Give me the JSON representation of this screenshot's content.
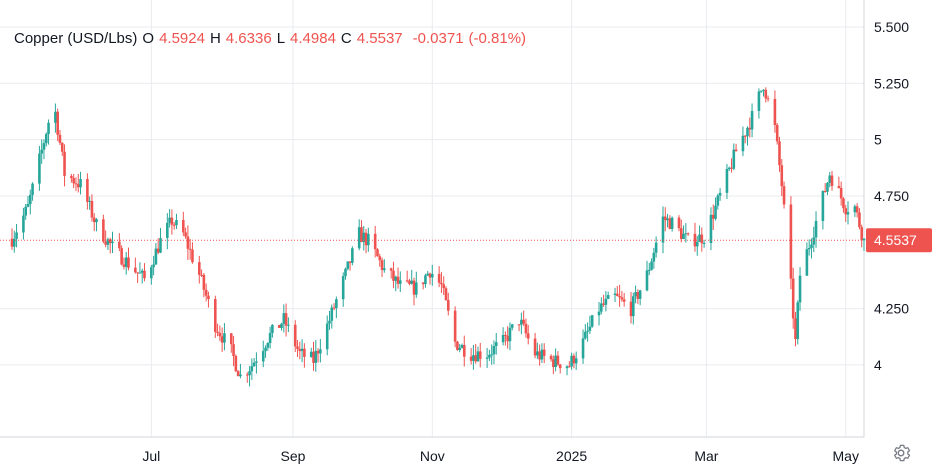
{
  "legend": {
    "symbol": "Copper (USD/Lbs)",
    "o_label": "O",
    "open": "4.5924",
    "h_label": "H",
    "high": "4.6336",
    "l_label": "L",
    "low": "4.4984",
    "c_label": "C",
    "close": "4.5537",
    "change": "-0.0371",
    "change_pct": "(-0.81%)"
  },
  "colors": {
    "up": "#26a69a",
    "down": "#ef5350",
    "grid": "#e9ebef",
    "axis_text": "#131722",
    "price_tag": "#ef5350"
  },
  "chart_data": {
    "type": "candlestick",
    "title": "Copper (USD/Lbs)",
    "ylim": [
      3.68,
      5.62
    ],
    "y_ticks": [
      {
        "value": 5.5,
        "label": "5.500"
      },
      {
        "value": 5.25,
        "label": "5.250"
      },
      {
        "value": 5.0,
        "label": "5"
      },
      {
        "value": 4.75,
        "label": "4.750"
      },
      {
        "value": 4.25,
        "label": "4.250"
      },
      {
        "value": 4.0,
        "label": "4"
      }
    ],
    "x_range": [
      "2024-05-01",
      "2025-05-09"
    ],
    "x_ticks": [
      {
        "date": "2024-07-01",
        "label": "Jul"
      },
      {
        "date": "2024-09-01",
        "label": "Sep"
      },
      {
        "date": "2024-11-01",
        "label": "Nov"
      },
      {
        "date": "2025-01-01",
        "label": "2025"
      },
      {
        "date": "2025-03-01",
        "label": "Mar"
      },
      {
        "date": "2025-05-01",
        "label": "May"
      }
    ],
    "last_price": {
      "value": 4.5537,
      "label": "4.5537"
    },
    "price_path": [
      [
        "2024-05-01",
        4.56
      ],
      [
        "2024-05-08",
        4.7
      ],
      [
        "2024-05-14",
        4.95
      ],
      [
        "2024-05-17",
        5.08
      ],
      [
        "2024-05-20",
        5.12
      ],
      [
        "2024-05-24",
        4.85
      ],
      [
        "2024-05-31",
        4.8
      ],
      [
        "2024-06-07",
        4.62
      ],
      [
        "2024-06-14",
        4.52
      ],
      [
        "2024-06-21",
        4.45
      ],
      [
        "2024-06-28",
        4.38
      ],
      [
        "2024-07-05",
        4.55
      ],
      [
        "2024-07-10",
        4.64
      ],
      [
        "2024-07-15",
        4.58
      ],
      [
        "2024-07-22",
        4.4
      ],
      [
        "2024-07-29",
        4.18
      ],
      [
        "2024-08-05",
        4.06
      ],
      [
        "2024-08-09",
        3.95
      ],
      [
        "2024-08-14",
        4.0
      ],
      [
        "2024-08-21",
        4.12
      ],
      [
        "2024-08-28",
        4.2
      ],
      [
        "2024-09-04",
        4.05
      ],
      [
        "2024-09-10",
        4.02
      ],
      [
        "2024-09-17",
        4.2
      ],
      [
        "2024-09-24",
        4.4
      ],
      [
        "2024-09-30",
        4.58
      ],
      [
        "2024-10-04",
        4.55
      ],
      [
        "2024-10-11",
        4.42
      ],
      [
        "2024-10-18",
        4.35
      ],
      [
        "2024-10-25",
        4.34
      ],
      [
        "2024-10-31",
        4.42
      ],
      [
        "2024-11-05",
        4.35
      ],
      [
        "2024-11-11",
        4.1
      ],
      [
        "2024-11-18",
        4.05
      ],
      [
        "2024-11-25",
        4.05
      ],
      [
        "2024-12-02",
        4.1
      ],
      [
        "2024-12-09",
        4.2
      ],
      [
        "2024-12-16",
        4.05
      ],
      [
        "2024-12-23",
        4.02
      ],
      [
        "2024-12-31",
        4.0
      ],
      [
        "2025-01-06",
        4.1
      ],
      [
        "2025-01-13",
        4.25
      ],
      [
        "2025-01-20",
        4.3
      ],
      [
        "2025-01-27",
        4.25
      ],
      [
        "2025-02-03",
        4.4
      ],
      [
        "2025-02-10",
        4.65
      ],
      [
        "2025-02-14",
        4.63
      ],
      [
        "2025-02-21",
        4.55
      ],
      [
        "2025-02-28",
        4.57
      ],
      [
        "2025-03-07",
        4.75
      ],
      [
        "2025-03-14",
        4.95
      ],
      [
        "2025-03-21",
        5.1
      ],
      [
        "2025-03-26",
        5.25
      ],
      [
        "2025-03-31",
        5.05
      ],
      [
        "2025-04-03",
        4.8
      ],
      [
        "2025-04-07",
        4.35
      ],
      [
        "2025-04-09",
        4.1
      ],
      [
        "2025-04-11",
        4.4
      ],
      [
        "2025-04-17",
        4.6
      ],
      [
        "2025-04-24",
        4.85
      ],
      [
        "2025-05-01",
        4.7
      ],
      [
        "2025-05-05",
        4.7
      ],
      [
        "2025-05-09",
        4.55
      ]
    ]
  },
  "ui": {
    "settings_icon": "gear-icon"
  }
}
